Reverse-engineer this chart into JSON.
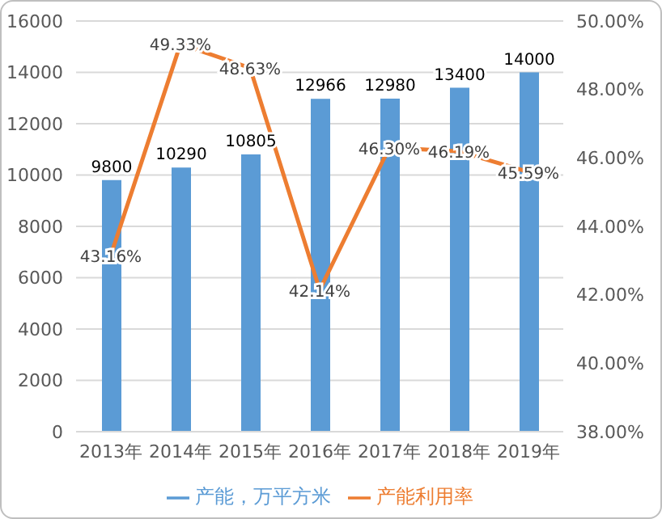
{
  "chart_data": {
    "type": "bar",
    "categories": [
      "2013年",
      "2014年",
      "2015年",
      "2016年",
      "2017年",
      "2018年",
      "2019年"
    ],
    "series": [
      {
        "name": "产能，万平方米",
        "color": "#5b9bd5",
        "values": [
          9800,
          10290,
          10805,
          12966,
          12980,
          13400,
          14000
        ],
        "value_labels": [
          "9800",
          "10290",
          "10805",
          "12966",
          "12980",
          "13400",
          "14000"
        ]
      },
      {
        "name": "产能利用率",
        "type": "line",
        "axis": "y2",
        "color": "#ed7d31",
        "values": [
          43.16,
          49.33,
          48.63,
          42.14,
          46.3,
          46.19,
          45.59
        ],
        "value_labels": [
          "43.16%",
          "49.33%",
          "48.63%",
          "42.14%",
          "46.30%",
          "46.19%",
          "45.59%"
        ]
      }
    ],
    "ylim": [
      0,
      16000
    ],
    "yticks": [
      0,
      2000,
      4000,
      6000,
      8000,
      10000,
      12000,
      14000,
      16000
    ],
    "y2lim": [
      38,
      50
    ],
    "y2ticks": [
      {
        "value": 38,
        "label": "38.00%"
      },
      {
        "value": 40,
        "label": "40.00%"
      },
      {
        "value": 42,
        "label": "42.00%"
      },
      {
        "value": 44,
        "label": "44.00%"
      },
      {
        "value": 46,
        "label": "46.00%"
      },
      {
        "value": 48,
        "label": "48.00%"
      },
      {
        "value": 50,
        "label": "50.00%"
      }
    ],
    "grid": "y",
    "legend": "bottom",
    "marker": "none",
    "line_style": "solid"
  }
}
